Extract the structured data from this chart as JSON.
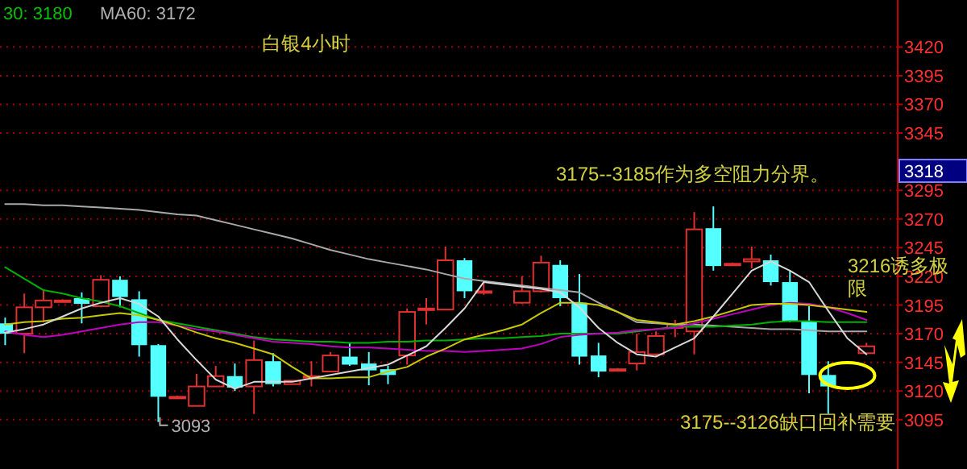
{
  "chart_data": {
    "type": "candlestick",
    "title": "白银4小时",
    "categories": [
      null,
      null,
      null,
      null,
      null,
      null,
      null,
      null,
      null,
      null,
      null,
      null,
      null,
      null,
      null,
      null,
      null,
      null,
      null,
      null,
      null,
      null,
      null,
      null,
      null,
      null,
      null,
      null,
      null,
      null,
      null,
      null,
      null,
      null,
      null,
      null,
      null,
      null,
      null,
      null,
      null,
      null,
      null,
      null,
      null,
      null
    ],
    "ohlc": [
      [
        3179,
        3184,
        3160,
        3170
      ],
      [
        3170,
        3205,
        3153,
        3193
      ],
      [
        3193,
        3208,
        3180,
        3199
      ],
      [
        3199,
        3200,
        3198,
        3199
      ],
      [
        3201,
        3206,
        3179,
        3196
      ],
      [
        3194,
        3221,
        3193,
        3217
      ],
      [
        3217,
        3220,
        3193,
        3202
      ],
      [
        3200,
        3207,
        3150,
        3160
      ],
      [
        3160,
        3161,
        3093,
        3115
      ],
      [
        3115,
        3116,
        3114,
        3115
      ],
      [
        3107,
        3135,
        3107,
        3124
      ],
      [
        3124,
        3142,
        3124,
        3133
      ],
      [
        3133,
        3144,
        3120,
        3123
      ],
      [
        3124,
        3164,
        3100,
        3147
      ],
      [
        3146,
        3153,
        3124,
        3126
      ],
      [
        3126,
        3129,
        3126,
        3129
      ],
      [
        3133,
        3146,
        3124,
        3133
      ],
      [
        3137,
        3154,
        3137,
        3151
      ],
      [
        3150,
        3162,
        3142,
        3143
      ],
      [
        3144,
        3154,
        3125,
        3138
      ],
      [
        3139,
        3142,
        3126,
        3134
      ],
      [
        3151,
        3192,
        3143,
        3189
      ],
      [
        3191,
        3201,
        3178,
        3192
      ],
      [
        3191,
        3246,
        3191,
        3234
      ],
      [
        3234,
        3236,
        3201,
        3207
      ],
      [
        3207,
        3215,
        3204,
        3207
      ],
      null,
      [
        3197,
        3220,
        3196,
        3207
      ],
      [
        3207,
        3238,
        3206,
        3232
      ],
      [
        3230,
        3234,
        3194,
        3201
      ],
      [
        3197,
        3222,
        3143,
        3150
      ],
      [
        3151,
        3162,
        3132,
        3137
      ],
      [
        3139,
        3140,
        3138,
        3139
      ],
      [
        3144,
        3170,
        3138,
        3154
      ],
      [
        3152,
        3172,
        3150,
        3168
      ],
      [
        3175,
        3182,
        3167,
        3178
      ],
      [
        3172,
        3276,
        3152,
        3261
      ],
      [
        3262,
        3281,
        3225,
        3229
      ],
      [
        3231,
        3232,
        3230,
        3231
      ],
      [
        3233,
        3246,
        3227,
        3235
      ],
      [
        3234,
        3239,
        3212,
        3215
      ],
      [
        3215,
        3225,
        3180,
        3181
      ],
      [
        3181,
        3194,
        3118,
        3134
      ],
      [
        3134,
        3146,
        3100,
        3124
      ],
      null,
      [
        3153,
        3162,
        3153,
        3159
      ]
    ],
    "series": [
      {
        "type": "line",
        "color": "#a8a8a8",
        "values": [
          3283,
          3283,
          3282,
          3282,
          3281,
          3280,
          3279,
          3278,
          3276,
          3274,
          3273,
          3269,
          3265,
          3261,
          3257,
          3253,
          3248,
          3243,
          3239,
          3235,
          3232,
          3229,
          3226,
          3222,
          3218,
          3216,
          3214,
          3212,
          3210,
          3208,
          3206,
          3197,
          3189,
          3180,
          3179,
          3178,
          3178,
          3177,
          3176,
          3175,
          3174,
          3174,
          3173,
          3172,
          3172,
          3172
        ]
      },
      {
        "type": "line",
        "color": "#00b000",
        "values": [
          3228,
          3218,
          3208,
          3205,
          3201,
          3198,
          3194,
          3188,
          3182,
          3179,
          3176,
          3173,
          3170,
          3167,
          3165,
          3164,
          3163,
          3163,
          3162,
          3162,
          3163,
          3163,
          3164,
          3164,
          3165,
          3166,
          3166,
          3167,
          3168,
          3170,
          3170,
          3170,
          3170,
          3172,
          3174,
          3176,
          3176,
          3176,
          3177,
          3178,
          3180,
          3181,
          3181,
          3180,
          3180,
          3180
        ]
      },
      {
        "type": "line",
        "color": "#c000c0",
        "values": [
          3172,
          3169,
          3167,
          3169,
          3172,
          3175,
          3178,
          3180,
          3180,
          3177,
          3174,
          3172,
          3169,
          3166,
          3163,
          3162,
          3161,
          3159,
          3158,
          3158,
          3157,
          3156,
          3155,
          3155,
          3154,
          3155,
          3156,
          3157,
          3161,
          3167,
          3169,
          3170,
          3171,
          3173,
          3174,
          3175,
          3179,
          3183,
          3187,
          3191,
          3195,
          3197,
          3196,
          3193,
          3188,
          3182
        ]
      },
      {
        "type": "line",
        "color": "#c8c800",
        "values": [
          3178,
          3180,
          3181,
          3183,
          3184,
          3186,
          3188,
          3186,
          3182,
          3177,
          3171,
          3166,
          3162,
          3157,
          3152,
          3141,
          3131,
          3131,
          3132,
          3132,
          3137,
          3141,
          3150,
          3157,
          3165,
          3169,
          3173,
          3178,
          3188,
          3197,
          3197,
          3195,
          3189,
          3182,
          3180,
          3178,
          3181,
          3185,
          3190,
          3195,
          3196,
          3196,
          3195,
          3193,
          3191,
          3189
        ]
      },
      {
        "type": "line",
        "color": "#d8d8d8",
        "values": [
          3171,
          3174,
          3178,
          3185,
          3192,
          3197,
          3201,
          3196,
          3185,
          3165,
          3147,
          3130,
          3122,
          3128,
          3128,
          3128,
          3131,
          3134,
          3137,
          3140,
          3143,
          3151,
          3159,
          3175,
          3192,
          3215,
          3213,
          3211,
          3209,
          3206,
          3193,
          3175,
          3162,
          3152,
          3150,
          3158,
          3166,
          3185,
          3205,
          3225,
          3233,
          3225,
          3215,
          3190,
          3166,
          3152
        ]
      }
    ],
    "ylim": [
      3052,
      3461
    ],
    "yticks": [
      3095,
      3120,
      3145,
      3170,
      3195,
      3220,
      3245,
      3270,
      3295,
      3345,
      3370,
      3395,
      3420
    ],
    "grid": "y",
    "annotations": [
      "30:  3180",
      "MA60:  3172",
      "3175--3185作为多空阻力分界。",
      "3216诱多极限",
      "3175--3126缺口回补需要",
      "3093",
      "3318"
    ]
  }
}
